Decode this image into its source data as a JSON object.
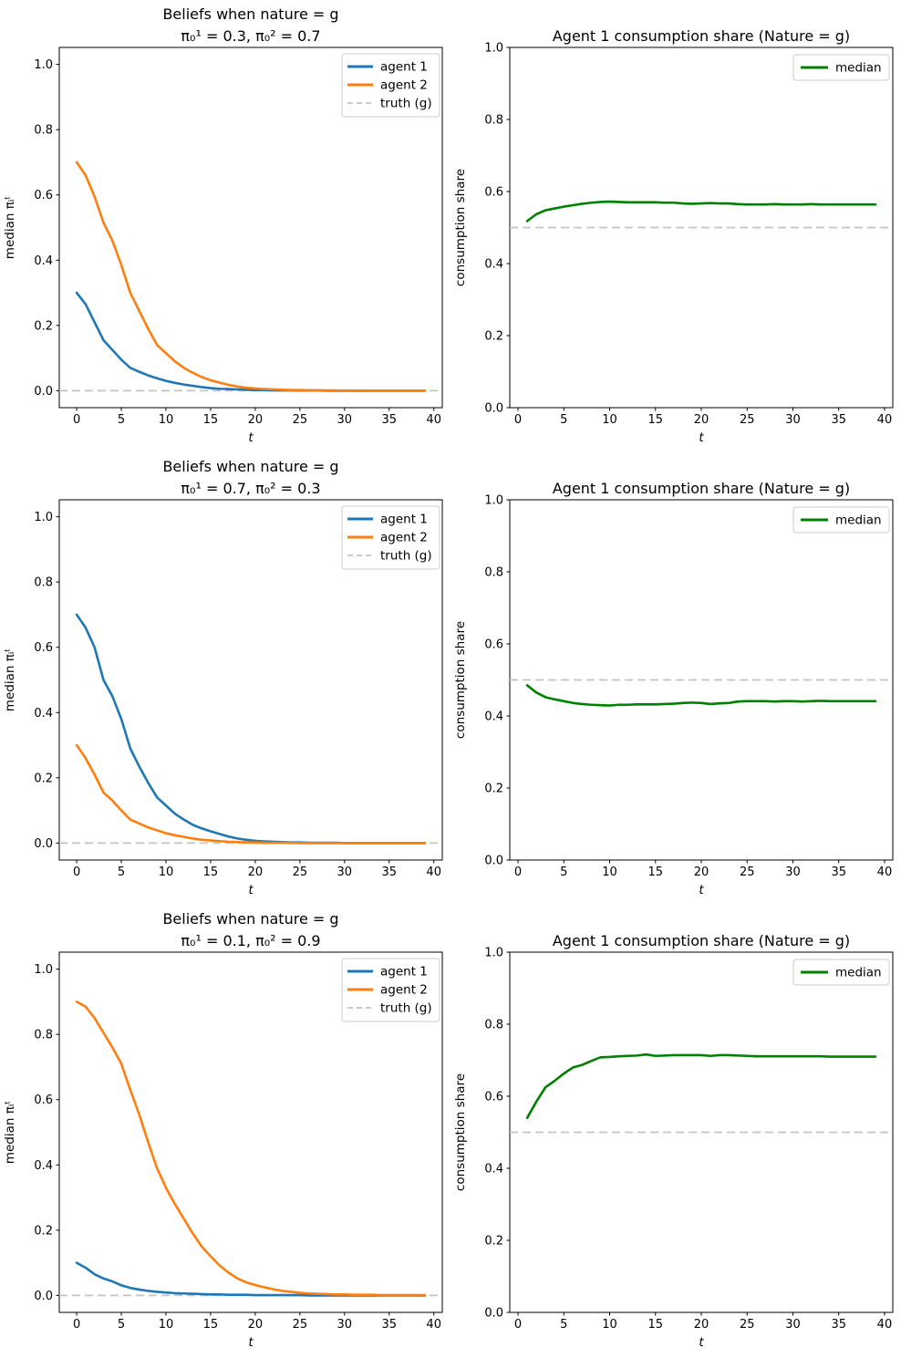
{
  "figure": {
    "background": "#ffffff",
    "rows": 3,
    "cols": 2
  },
  "colors": {
    "agent1": "#1f77b4",
    "agent2": "#ff7f0e",
    "median": "#008000",
    "truth": "#c4c4c4",
    "spine": "#000000",
    "legend_border": "#cccccc"
  },
  "chart_data": [
    {
      "id": "beliefs-row1",
      "type": "line",
      "title": "Beliefs when nature = g",
      "subtitle": "π₀¹ = 0.3, π₀² = 0.7",
      "xlabel": "t",
      "ylabel": "median πᵢᵗ",
      "xlim": [
        -1.95,
        40.95
      ],
      "ylim": [
        -0.052,
        1.052
      ],
      "xticks": [
        0,
        5,
        10,
        15,
        20,
        25,
        30,
        35,
        40
      ],
      "xtick_labels": [
        "0",
        "5",
        "10",
        "15",
        "20",
        "25",
        "30",
        "35",
        "40"
      ],
      "yticks": [
        0.0,
        0.2,
        0.4,
        0.6,
        0.8,
        1.0
      ],
      "ytick_labels": [
        "0.0",
        "0.2",
        "0.4",
        "0.6",
        "0.8",
        "1.0"
      ],
      "grid": false,
      "legend_position": "upper right",
      "truth_line": {
        "value": 0.0,
        "style": "dashed",
        "color": "#c4c4c4"
      },
      "series": [
        {
          "name": "agent 1",
          "color": "#1f77b4",
          "x_start": 0,
          "values": [
            0.3,
            0.265,
            0.21,
            0.155,
            0.125,
            0.095,
            0.07,
            0.058,
            0.047,
            0.038,
            0.03,
            0.024,
            0.019,
            0.015,
            0.011,
            0.008,
            0.006,
            0.005,
            0.004,
            0.003,
            0.002,
            0.002,
            0.001,
            0.001,
            0.001,
            0.001,
            0.001,
            0.001,
            0.0,
            0.0,
            0.0,
            0.0,
            0.0,
            0.0,
            0.0,
            0.0,
            0.0,
            0.0,
            0.0,
            0.0
          ]
        },
        {
          "name": "agent 2",
          "color": "#ff7f0e",
          "x_start": 0,
          "values": [
            0.7,
            0.66,
            0.595,
            0.515,
            0.46,
            0.385,
            0.3,
            0.245,
            0.19,
            0.14,
            0.115,
            0.09,
            0.07,
            0.055,
            0.042,
            0.032,
            0.025,
            0.018,
            0.013,
            0.009,
            0.007,
            0.005,
            0.004,
            0.003,
            0.002,
            0.002,
            0.001,
            0.001,
            0.001,
            0.001,
            0.0,
            0.0,
            0.0,
            0.0,
            0.0,
            0.0,
            0.0,
            0.0,
            0.0,
            0.0
          ]
        }
      ],
      "legend": [
        {
          "label": "agent 1",
          "color": "#1f77b4",
          "dash": false
        },
        {
          "label": "agent 2",
          "color": "#ff7f0e",
          "dash": false
        },
        {
          "label": "truth (g)",
          "color": "#c4c4c4",
          "dash": true
        }
      ]
    },
    {
      "id": "share-row1",
      "type": "line",
      "title": "Agent 1 consumption share (Nature = g)",
      "subtitle": "",
      "xlabel": "t",
      "ylabel": "consumption share",
      "xlim": [
        -0.9,
        40.9
      ],
      "ylim": [
        0.0,
        1.0
      ],
      "xticks": [
        0,
        5,
        10,
        15,
        20,
        25,
        30,
        35,
        40
      ],
      "xtick_labels": [
        "0",
        "5",
        "10",
        "15",
        "20",
        "25",
        "30",
        "35",
        "40"
      ],
      "yticks": [
        0.0,
        0.2,
        0.4,
        0.6,
        0.8,
        1.0
      ],
      "ytick_labels": [
        "0.0",
        "0.2",
        "0.4",
        "0.6",
        "0.8",
        "1.0"
      ],
      "grid": false,
      "legend_position": "upper right",
      "truth_line": {
        "value": 0.5,
        "style": "dashed",
        "color": "#c4c4c4"
      },
      "series": [
        {
          "name": "median",
          "color": "#008000",
          "x_start": 1,
          "values": [
            0.518,
            0.537,
            0.548,
            0.553,
            0.558,
            0.562,
            0.566,
            0.569,
            0.571,
            0.572,
            0.571,
            0.57,
            0.57,
            0.57,
            0.57,
            0.569,
            0.569,
            0.567,
            0.566,
            0.567,
            0.568,
            0.567,
            0.567,
            0.565,
            0.564,
            0.564,
            0.564,
            0.565,
            0.564,
            0.564,
            0.564,
            0.565,
            0.564,
            0.564,
            0.564,
            0.564,
            0.564,
            0.564,
            0.564
          ]
        }
      ],
      "legend": [
        {
          "label": "median",
          "color": "#008000",
          "dash": false
        }
      ]
    },
    {
      "id": "beliefs-row2",
      "type": "line",
      "title": "Beliefs when nature = g",
      "subtitle": "π₀¹ = 0.7, π₀² = 0.3",
      "xlabel": "t",
      "ylabel": "median πᵢᵗ",
      "xlim": [
        -1.95,
        40.95
      ],
      "ylim": [
        -0.052,
        1.052
      ],
      "xticks": [
        0,
        5,
        10,
        15,
        20,
        25,
        30,
        35,
        40
      ],
      "xtick_labels": [
        "0",
        "5",
        "10",
        "15",
        "20",
        "25",
        "30",
        "35",
        "40"
      ],
      "yticks": [
        0.0,
        0.2,
        0.4,
        0.6,
        0.8,
        1.0
      ],
      "ytick_labels": [
        "0.0",
        "0.2",
        "0.4",
        "0.6",
        "0.8",
        "1.0"
      ],
      "grid": false,
      "legend_position": "upper right",
      "truth_line": {
        "value": 0.0,
        "style": "dashed",
        "color": "#c4c4c4"
      },
      "series": [
        {
          "name": "agent 1",
          "color": "#1f77b4",
          "x_start": 0,
          "values": [
            0.7,
            0.66,
            0.6,
            0.5,
            0.45,
            0.38,
            0.29,
            0.235,
            0.185,
            0.14,
            0.115,
            0.09,
            0.072,
            0.056,
            0.045,
            0.036,
            0.028,
            0.02,
            0.014,
            0.01,
            0.007,
            0.005,
            0.004,
            0.003,
            0.002,
            0.002,
            0.001,
            0.001,
            0.001,
            0.001,
            0.0,
            0.0,
            0.0,
            0.0,
            0.0,
            0.0,
            0.0,
            0.0,
            0.0,
            0.0
          ]
        },
        {
          "name": "agent 2",
          "color": "#ff7f0e",
          "x_start": 0,
          "values": [
            0.3,
            0.26,
            0.21,
            0.155,
            0.13,
            0.1,
            0.072,
            0.06,
            0.048,
            0.039,
            0.03,
            0.024,
            0.019,
            0.014,
            0.01,
            0.008,
            0.006,
            0.004,
            0.003,
            0.002,
            0.002,
            0.001,
            0.001,
            0.001,
            0.001,
            0.0,
            0.0,
            0.0,
            0.0,
            0.0,
            0.0,
            0.0,
            0.0,
            0.0,
            0.0,
            0.0,
            0.0,
            0.0,
            0.0,
            0.0
          ]
        }
      ],
      "legend": [
        {
          "label": "agent 1",
          "color": "#1f77b4",
          "dash": false
        },
        {
          "label": "agent 2",
          "color": "#ff7f0e",
          "dash": false
        },
        {
          "label": "truth (g)",
          "color": "#c4c4c4",
          "dash": true
        }
      ]
    },
    {
      "id": "share-row2",
      "type": "line",
      "title": "Agent 1 consumption share (Nature = g)",
      "subtitle": "",
      "xlabel": "t",
      "ylabel": "consumption share",
      "xlim": [
        -0.9,
        40.9
      ],
      "ylim": [
        0.0,
        1.0
      ],
      "xticks": [
        0,
        5,
        10,
        15,
        20,
        25,
        30,
        35,
        40
      ],
      "xtick_labels": [
        "0",
        "5",
        "10",
        "15",
        "20",
        "25",
        "30",
        "35",
        "40"
      ],
      "yticks": [
        0.0,
        0.2,
        0.4,
        0.6,
        0.8,
        1.0
      ],
      "ytick_labels": [
        "0.0",
        "0.2",
        "0.4",
        "0.6",
        "0.8",
        "1.0"
      ],
      "grid": false,
      "legend_position": "upper right",
      "truth_line": {
        "value": 0.5,
        "style": "dashed",
        "color": "#c4c4c4"
      },
      "series": [
        {
          "name": "median",
          "color": "#008000",
          "x_start": 1,
          "values": [
            0.485,
            0.465,
            0.452,
            0.446,
            0.441,
            0.436,
            0.433,
            0.431,
            0.43,
            0.429,
            0.431,
            0.431,
            0.432,
            0.432,
            0.432,
            0.433,
            0.434,
            0.436,
            0.437,
            0.436,
            0.433,
            0.435,
            0.436,
            0.44,
            0.441,
            0.441,
            0.441,
            0.44,
            0.441,
            0.441,
            0.44,
            0.441,
            0.442,
            0.441,
            0.441,
            0.441,
            0.441,
            0.441,
            0.441
          ]
        }
      ],
      "legend": [
        {
          "label": "median",
          "color": "#008000",
          "dash": false
        }
      ]
    },
    {
      "id": "beliefs-row3",
      "type": "line",
      "title": "Beliefs when nature = g",
      "subtitle": "π₀¹ = 0.1, π₀² = 0.9",
      "xlabel": "t",
      "ylabel": "median πᵢᵗ",
      "xlim": [
        -1.95,
        40.95
      ],
      "ylim": [
        -0.052,
        1.052
      ],
      "xticks": [
        0,
        5,
        10,
        15,
        20,
        25,
        30,
        35,
        40
      ],
      "xtick_labels": [
        "0",
        "5",
        "10",
        "15",
        "20",
        "25",
        "30",
        "35",
        "40"
      ],
      "yticks": [
        0.0,
        0.2,
        0.4,
        0.6,
        0.8,
        1.0
      ],
      "ytick_labels": [
        "0.0",
        "0.2",
        "0.4",
        "0.6",
        "0.8",
        "1.0"
      ],
      "grid": false,
      "legend_position": "upper right",
      "truth_line": {
        "value": 0.0,
        "style": "dashed",
        "color": "#c4c4c4"
      },
      "series": [
        {
          "name": "agent 1",
          "color": "#1f77b4",
          "x_start": 0,
          "values": [
            0.1,
            0.085,
            0.065,
            0.052,
            0.043,
            0.031,
            0.023,
            0.018,
            0.014,
            0.011,
            0.009,
            0.007,
            0.006,
            0.005,
            0.004,
            0.003,
            0.003,
            0.002,
            0.002,
            0.002,
            0.001,
            0.001,
            0.001,
            0.001,
            0.001,
            0.001,
            0.0,
            0.0,
            0.0,
            0.0,
            0.0,
            0.0,
            0.0,
            0.0,
            0.0,
            0.0,
            0.0,
            0.0,
            0.0,
            0.0
          ]
        },
        {
          "name": "agent 2",
          "color": "#ff7f0e",
          "x_start": 0,
          "values": [
            0.9,
            0.885,
            0.85,
            0.805,
            0.76,
            0.71,
            0.63,
            0.555,
            0.47,
            0.39,
            0.33,
            0.28,
            0.235,
            0.19,
            0.15,
            0.12,
            0.092,
            0.07,
            0.052,
            0.04,
            0.032,
            0.025,
            0.019,
            0.014,
            0.011,
            0.008,
            0.006,
            0.005,
            0.004,
            0.003,
            0.003,
            0.002,
            0.002,
            0.002,
            0.001,
            0.001,
            0.001,
            0.001,
            0.001,
            0.001
          ]
        }
      ],
      "legend": [
        {
          "label": "agent 1",
          "color": "#1f77b4",
          "dash": false
        },
        {
          "label": "agent 2",
          "color": "#ff7f0e",
          "dash": false
        },
        {
          "label": "truth (g)",
          "color": "#c4c4c4",
          "dash": true
        }
      ]
    },
    {
      "id": "share-row3",
      "type": "line",
      "title": "Agent 1 consumption share (Nature = g)",
      "subtitle": "",
      "xlabel": "t",
      "ylabel": "consumption share",
      "xlim": [
        -0.9,
        40.9
      ],
      "ylim": [
        0.0,
        1.0
      ],
      "xticks": [
        0,
        5,
        10,
        15,
        20,
        25,
        30,
        35,
        40
      ],
      "xtick_labels": [
        "0",
        "5",
        "10",
        "15",
        "20",
        "25",
        "30",
        "35",
        "40"
      ],
      "yticks": [
        0.0,
        0.2,
        0.4,
        0.6,
        0.8,
        1.0
      ],
      "ytick_labels": [
        "0.0",
        "0.2",
        "0.4",
        "0.6",
        "0.8",
        "1.0"
      ],
      "grid": false,
      "legend_position": "upper right",
      "truth_line": {
        "value": 0.5,
        "style": "dashed",
        "color": "#c4c4c4"
      },
      "series": [
        {
          "name": "median",
          "color": "#008000",
          "x_start": 1,
          "values": [
            0.54,
            0.585,
            0.625,
            0.643,
            0.663,
            0.68,
            0.687,
            0.698,
            0.708,
            0.709,
            0.711,
            0.712,
            0.713,
            0.716,
            0.712,
            0.713,
            0.714,
            0.714,
            0.714,
            0.714,
            0.712,
            0.714,
            0.714,
            0.713,
            0.712,
            0.711,
            0.711,
            0.711,
            0.711,
            0.711,
            0.711,
            0.711,
            0.711,
            0.71,
            0.71,
            0.71,
            0.71,
            0.71,
            0.71
          ]
        }
      ],
      "legend": [
        {
          "label": "median",
          "color": "#008000",
          "dash": false
        }
      ]
    }
  ]
}
